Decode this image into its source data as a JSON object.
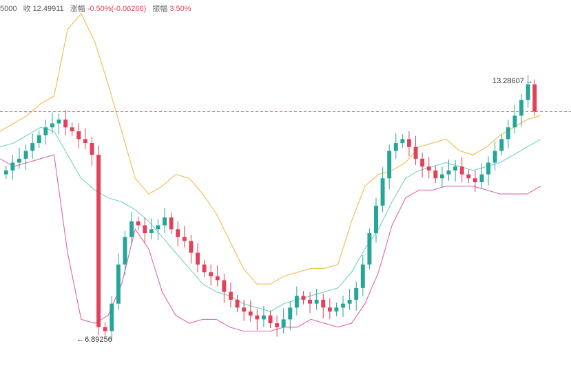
{
  "info_bar": {
    "open_fragment": "5000",
    "close_label": "收",
    "close_value": "12.49911",
    "change_label": "涨幅",
    "change_value": "-0.50%(-0.06266)",
    "amplitude_label": "振幅",
    "amplitude_value": "3.50%"
  },
  "annotations": {
    "high": "13.28607",
    "low": "6.89256"
  },
  "colors": {
    "up": "#26a69a",
    "down": "#e2415a",
    "upper_band": "#f5b94a",
    "middle_band": "#6fd4c0",
    "lower_band": "#e064a8",
    "price_line": "#e2415a"
  },
  "chart_data": {
    "type": "candlestick",
    "indicator": "bollinger-bands",
    "current_price": 12.49911,
    "ylim": [
      6.4,
      15.0
    ],
    "marked_high": 13.28607,
    "marked_low": 6.89256,
    "close_series": [
      11.0,
      11.2,
      11.3,
      11.5,
      11.7,
      11.9,
      12.1,
      12.2,
      12.3,
      12.1,
      12.0,
      11.8,
      11.7,
      11.4,
      7.0,
      6.9,
      7.6,
      8.6,
      9.3,
      9.7,
      9.6,
      9.4,
      9.5,
      9.6,
      9.8,
      9.5,
      9.3,
      9.2,
      8.9,
      8.6,
      8.4,
      8.3,
      8.2,
      7.9,
      7.7,
      7.5,
      7.4,
      7.3,
      7.2,
      7.3,
      7.1,
      7.0,
      7.2,
      7.5,
      7.8,
      7.7,
      7.6,
      7.7,
      7.5,
      7.4,
      7.5,
      7.6,
      7.7,
      8.0,
      8.6,
      9.4,
      10.1,
      10.8,
      11.5,
      11.7,
      11.8,
      11.6,
      11.3,
      11.1,
      11.0,
      10.8,
      10.9,
      11.0,
      11.1,
      10.9,
      10.8,
      10.7,
      10.9,
      11.2,
      11.5,
      11.8,
      12.1,
      12.4,
      12.8,
      13.2,
      12.5
    ],
    "upper_band": [
      12.0,
      12.2,
      12.4,
      12.7,
      12.9,
      14.6,
      15.0,
      14.3,
      13.2,
      12.0,
      10.8,
      10.4,
      10.6,
      10.9,
      10.8,
      10.4,
      9.9,
      9.2,
      8.5,
      8.1,
      8.1,
      8.3,
      8.4,
      8.5,
      8.5,
      8.6,
      9.7,
      10.6,
      10.9,
      11.0,
      11.2,
      11.6,
      11.7,
      11.8,
      11.5,
      11.4,
      11.6,
      11.9,
      12.1,
      12.3,
      12.4
    ],
    "middle_band": [
      11.6,
      11.7,
      11.9,
      12.1,
      12.0,
      11.4,
      10.8,
      10.5,
      10.3,
      10.2,
      10.0,
      9.7,
      9.3,
      8.9,
      8.5,
      8.1,
      7.9,
      7.8,
      7.6,
      7.5,
      7.4,
      7.6,
      7.7,
      7.8,
      7.9,
      8.0,
      8.4,
      9.0,
      9.5,
      10.2,
      10.8,
      11.0,
      11.1,
      11.2,
      11.1,
      11.0,
      11.1,
      11.2,
      11.4,
      11.6,
      11.8
    ],
    "lower_band": [
      11.3,
      11.1,
      11.2,
      11.3,
      11.4,
      8.9,
      7.2,
      7.1,
      7.3,
      8.1,
      9.5,
      9.0,
      7.9,
      7.3,
      7.1,
      7.2,
      7.2,
      7.0,
      6.9,
      6.9,
      6.9,
      7.0,
      7.0,
      7.2,
      7.1,
      7.0,
      7.1,
      7.6,
      8.4,
      9.6,
      10.3,
      10.5,
      10.5,
      10.6,
      10.6,
      10.6,
      10.5,
      10.4,
      10.4,
      10.4,
      10.6
    ]
  }
}
